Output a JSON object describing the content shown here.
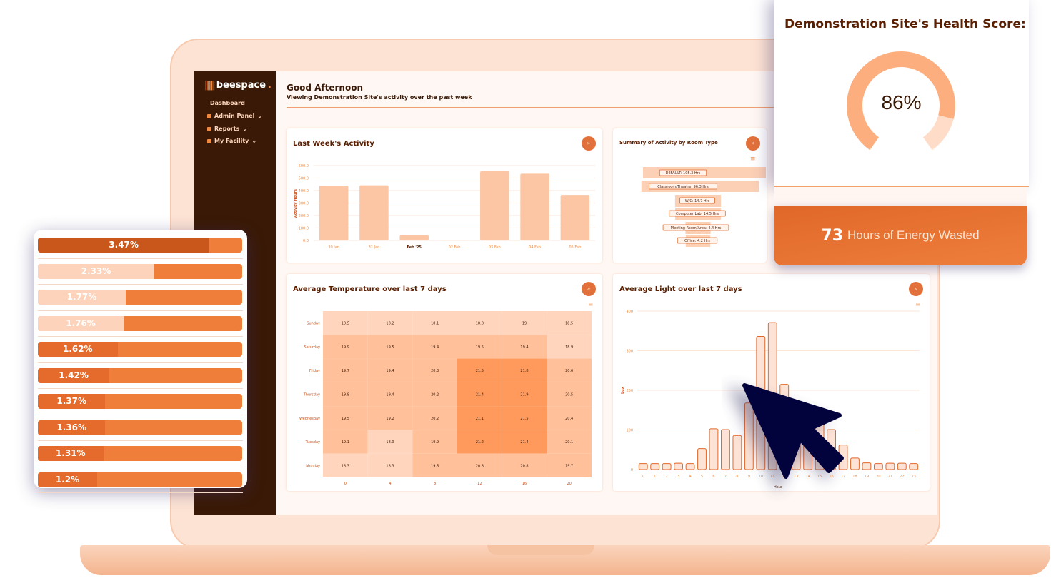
{
  "brand": {
    "name": "beespace",
    "accent": "#e87030",
    "dark": "#3a1906"
  },
  "sidebar": {
    "items": [
      {
        "label": "Dashboard",
        "icon": ""
      },
      {
        "label": "Admin Panel",
        "icon": "shield-icon"
      },
      {
        "label": "Reports",
        "icon": "report-icon"
      },
      {
        "label": "My Facility",
        "icon": "building-icon"
      }
    ]
  },
  "header": {
    "greeting": "Good Afternoon",
    "subtitle": "Viewing Demonstration Site's activity over the past week"
  },
  "activity": {
    "title": "Last Week's Activity"
  },
  "summary": {
    "title": "Summary of Activity by Room Type"
  },
  "temperature": {
    "title": "Average Temperature over last 7 days"
  },
  "light": {
    "title": "Average Light over last 7 days"
  },
  "health": {
    "title": "Demonstration Site's Health Score:",
    "score": 86,
    "score_label": "86%"
  },
  "energy": {
    "value": "73",
    "label": "Hours of Energy Wasted"
  },
  "percent_list": [
    {
      "label": "3.47%",
      "fill": 0.84,
      "color": "#c9561a"
    },
    {
      "label": "2.33%",
      "fill": 0.57,
      "color": "#fdd3bb"
    },
    {
      "label": "1.77%",
      "fill": 0.43,
      "color": "#fdd3bb"
    },
    {
      "label": "1.76%",
      "fill": 0.42,
      "color": "#fdd3bb"
    },
    {
      "label": "1.62%",
      "fill": 0.39,
      "color": "#e56b2c"
    },
    {
      "label": "1.42%",
      "fill": 0.35,
      "color": "#e56b2c"
    },
    {
      "label": "1.37%",
      "fill": 0.33,
      "color": "#e56b2c"
    },
    {
      "label": "1.36%",
      "fill": 0.33,
      "color": "#e56b2c"
    },
    {
      "label": "1.31%",
      "fill": 0.32,
      "color": "#e56b2c"
    },
    {
      "label": "1.2%",
      "fill": 0.29,
      "color": "#e56b2c"
    }
  ],
  "chart_data": [
    {
      "type": "bar",
      "title": "Last Week's Activity",
      "ylabel": "Activity Hours",
      "xlabel": "",
      "categories": [
        "30 Jan",
        "31 Jan",
        "Feb '25",
        "02 Feb",
        "03 Feb",
        "04 Feb",
        "05 Feb"
      ],
      "values": [
        440,
        442,
        42,
        5,
        555,
        535,
        365
      ],
      "ylim": [
        0,
        600
      ],
      "yticks": [
        "0.0",
        "100.0",
        "200.0",
        "300.0",
        "400.0",
        "500.0",
        "600.0"
      ],
      "grid": true,
      "color": "#fcc6a4"
    },
    {
      "type": "funnel",
      "title": "Summary of Activity by Room Type",
      "categories": [
        "DEFAULT",
        "Classroom/Theatre",
        "W/C",
        "Computer Lab",
        "Meeting Room/Area",
        "Office"
      ],
      "values": [
        105.3,
        96.3,
        14.7,
        14.5,
        4.4,
        4.2
      ],
      "labels": [
        "DEFAULT: 105.3 Hrs",
        "Classroom/Theatre: 96.3 Hrs",
        "W/C: 14.7 Hrs",
        "Computer Lab: 14.5 Hrs",
        "Meeting Room/Area: 4.4 Hrs",
        "Office: 4.2 Hrs"
      ]
    },
    {
      "type": "heatmap",
      "title": "Average Temperature over last 7 days",
      "x": [
        "0",
        "4",
        "8",
        "12",
        "16",
        "20"
      ],
      "y": [
        "Sunday",
        "Saturday",
        "Friday",
        "Thursday",
        "Wednesday",
        "Tuesday",
        "Monday"
      ],
      "values": [
        [
          18.5,
          18.2,
          18.1,
          18.8,
          19,
          18.5
        ],
        [
          19.9,
          19.5,
          19.4,
          19.5,
          19.4,
          18.9
        ],
        [
          19.7,
          19.4,
          20.3,
          21.5,
          21.8,
          20.6
        ],
        [
          19.8,
          19.4,
          20.2,
          21.4,
          21.9,
          20.5
        ],
        [
          19.5,
          19.2,
          20.2,
          21.1,
          21.5,
          20.4
        ],
        [
          19.1,
          18.9,
          19.9,
          21.2,
          21.4,
          20.1
        ],
        [
          18.3,
          18.3,
          19.5,
          20.8,
          20.8,
          19.7
        ]
      ]
    },
    {
      "type": "bar",
      "title": "Average Light over last 7 days",
      "xlabel": "Hour",
      "ylabel": "Lux",
      "categories": [
        "0",
        "1",
        "2",
        "3",
        "4",
        "5",
        "6",
        "7",
        "8",
        "9",
        "10",
        "11",
        "12",
        "13",
        "14",
        "15",
        "16",
        "17",
        "18",
        "19",
        "20",
        "21",
        "22",
        "23"
      ],
      "values": [
        15,
        15,
        15,
        16,
        15,
        53,
        103,
        101,
        86,
        168,
        336,
        371,
        215,
        130,
        140,
        152,
        101,
        62,
        29,
        17,
        15,
        16,
        16,
        15
      ],
      "ylim": [
        0,
        400
      ],
      "yticks": [
        "0",
        "100",
        "200",
        "300",
        "400"
      ],
      "grid": true,
      "color": "#fde3d5",
      "stroke": "#e2682a"
    }
  ]
}
